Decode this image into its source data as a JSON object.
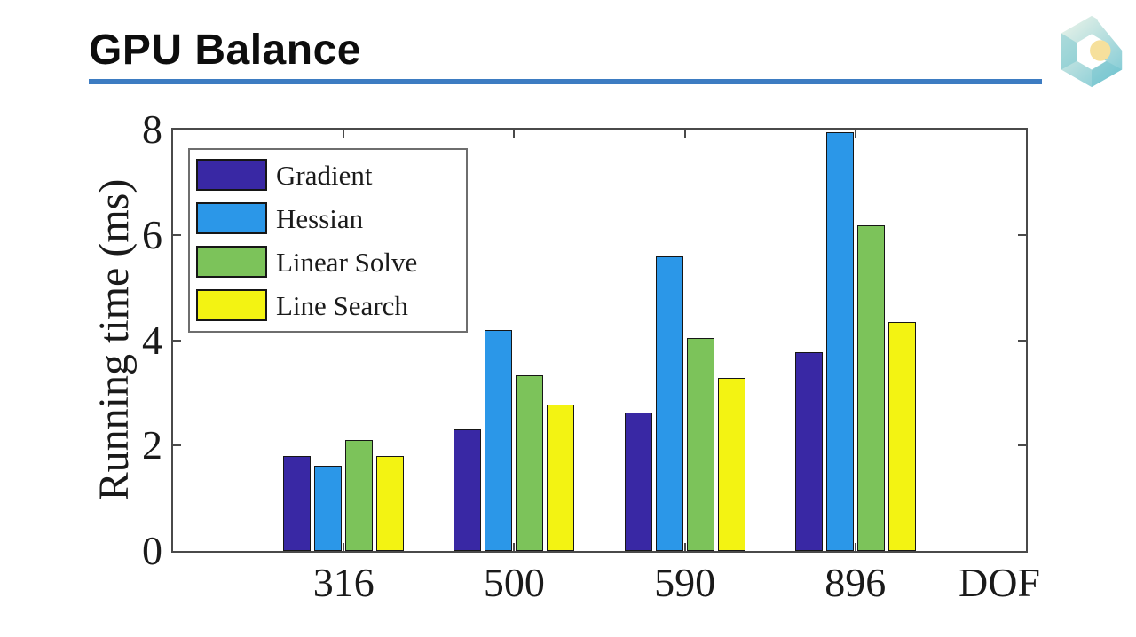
{
  "header": {
    "title": "GPU Balance",
    "rule_color": "#3d7cc2"
  },
  "logo": {
    "icon": "hexagon-cube-logo",
    "colors": {
      "teal_light": "#eef5ea",
      "teal": "#bfe2e0",
      "teal_deep": "#85ccd6",
      "accent_circle": "#f6e09c"
    }
  },
  "chart_data": {
    "type": "bar",
    "title": "",
    "xlabel": "DOF",
    "ylabel": "Running time (ms)",
    "ylim": [
      0,
      8
    ],
    "yticks": [
      0,
      2,
      4,
      6,
      8
    ],
    "categories": [
      "316",
      "500",
      "590",
      "896"
    ],
    "series": [
      {
        "name": "Gradient",
        "color": "#3928a4",
        "values": [
          1.8,
          2.3,
          2.62,
          3.77
        ]
      },
      {
        "name": "Hessian",
        "color": "#2b97e8",
        "values": [
          1.62,
          4.2,
          5.6,
          7.95
        ]
      },
      {
        "name": "Linear Solve",
        "color": "#7cc35a",
        "values": [
          2.1,
          3.33,
          4.05,
          6.18
        ]
      },
      {
        "name": "Line Search",
        "color": "#f3f312",
        "values": [
          1.8,
          2.78,
          3.28,
          4.35
        ]
      }
    ],
    "legend_position": "top-left",
    "grid": false,
    "axis_color": "#4a4a4a"
  }
}
